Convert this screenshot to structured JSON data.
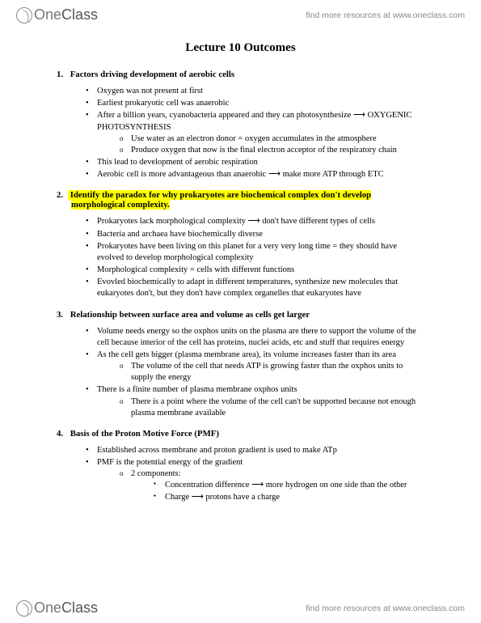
{
  "brand": {
    "thin": "One",
    "bold": "Class"
  },
  "resources_text": "find more resources at www.oneclass.com",
  "title": "Lecture 10 Outcomes",
  "sections": [
    {
      "num": "1.",
      "heading": "Factors driving development of aerobic cells",
      "highlight": false,
      "bullets": [
        {
          "text": "Oxygen was not present at first"
        },
        {
          "text": "Earliest prokaryotic cell was anaerobic"
        },
        {
          "text": "After a billion years, cyanobacteria appeared and they can photosynthesize ⟶ OXYGENIC PHOTOSYNTHESIS",
          "sub": [
            {
              "text": "Use water as an electron donor = oxygen accumulates in the atmosphere"
            },
            {
              "text": "Produce oxygen that now is the final electron acceptor of the respiratory chain"
            }
          ]
        },
        {
          "text": "This lead to development of aerobic respiration"
        },
        {
          "text": "Aerobic cell is more advantageous than anaerobic ⟶ make more ATP through ETC"
        }
      ]
    },
    {
      "num": "2.",
      "heading": "Identify the paradox for why prokaryotes are biochemical complex don't develop morphological complexity.",
      "highlight": true,
      "bullets": [
        {
          "text": "Prokaryotes lack morphological complexity ⟶ don't have different types of cells"
        },
        {
          "text": "Bacteria and archaea have biochemically diverse"
        },
        {
          "text": "Prokaryotes have been living on this planet for a very very long time = they should have evolved to develop morphological complexity"
        },
        {
          "text": "Morphological complexity = cells with different functions"
        },
        {
          "text": "Evovled biochemically to adapt in different temperatures, synthesize new molecules that eukaryotes don't, but they don't have complex organelles that eukaryotes have"
        }
      ]
    },
    {
      "num": "3.",
      "heading": "Relationship between surface area and volume as cells get larger",
      "highlight": false,
      "bullets": [
        {
          "text": "Volume needs energy so the oxphos units on the plasma are there to support the volume of the cell because interior of the cell has proteins, nuclei acids, etc and stuff that requires energy"
        },
        {
          "text": "As the cell gets bigger (plasma membrane area), its volume increases faster than its area",
          "sub": [
            {
              "text": "The volume of the cell that needs ATP is growing faster than the oxphos units to supply the energy"
            }
          ]
        },
        {
          "text": "There is a finite number of plasma membrane oxphos units",
          "sub": [
            {
              "text": "There is a point where the volume of the cell can't be supported because not enough plasma membrane available"
            }
          ]
        }
      ]
    },
    {
      "num": "4.",
      "heading": "Basis of the Proton Motive Force (PMF)",
      "highlight": false,
      "bullets": [
        {
          "text": "Established across membrane and proton gradient is used to make ATp"
        },
        {
          "text": "PMF is the potential energy of the gradient",
          "sub": [
            {
              "text": "2 components:",
              "subsub": [
                {
                  "text": "Concentration difference ⟶ more hydrogen on one side than the other"
                },
                {
                  "text": "Charge ⟶ protons have a charge"
                }
              ]
            }
          ]
        }
      ]
    }
  ]
}
